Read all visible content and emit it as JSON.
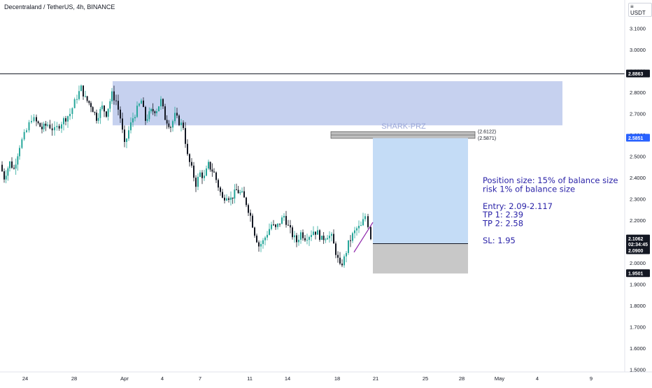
{
  "header": {
    "title": "Decentraland / TetherUS, 4h, BINANCE",
    "currency": "USDT",
    "currency_prefix": "≡"
  },
  "colors": {
    "candle_up": "#26a69a",
    "candle_dark": "#131722",
    "zone": "#b3c2ea",
    "profit": "#c4dcf6",
    "loss": "#c8c8c8",
    "prz_box": "#bfbfbf",
    "text_note": "#2b23a8",
    "price_tag": "#131722",
    "price_tag_blue": "#2962ff",
    "trendline": "#8e24aa"
  },
  "annotations": {
    "zone_label": "SHARK-PRZ",
    "prz_upper": "(2.6122)",
    "prz_lower": "(2.5871)",
    "note_lines": [
      "Position size: 15% of balance size",
      "risk 1% of balance size",
      "",
      "Entry: 2.09-2.117",
      "TP 1: 2.39",
      "TP 2: 2.58",
      "",
      "SL: 1.95"
    ]
  },
  "price_tags": {
    "horizontal_line": "2.8863",
    "target": "2.5851",
    "current": "2.1062",
    "countdown": "02:34:45",
    "entry": "2.0900",
    "stop": "1.9501"
  },
  "chart_data": {
    "type": "candlestick",
    "title": "Decentraland / TetherUS, 4h, BINANCE",
    "y_axis": {
      "min": 1.5,
      "max": 3.15,
      "ticks": [
        "3.1000",
        "3.0000",
        "2.9000",
        "2.8000",
        "2.7000",
        "2.6000",
        "2.5000",
        "2.4000",
        "2.3000",
        "2.2000",
        "2.1000",
        "2.0000",
        "1.9000",
        "1.8000",
        "1.7000",
        "1.6000",
        "1.5000"
      ]
    },
    "x_axis": {
      "labels": [
        "24",
        "28",
        "Apr",
        "4",
        "7",
        "11",
        "14",
        "18",
        "21",
        "25",
        "28",
        "May",
        "4",
        "9"
      ]
    },
    "close_path": [
      [
        0,
        2.46
      ],
      [
        6,
        2.4
      ],
      [
        14,
        2.47
      ],
      [
        20,
        2.44
      ],
      [
        28,
        2.55
      ],
      [
        38,
        2.62
      ],
      [
        45,
        2.68
      ],
      [
        52,
        2.66
      ],
      [
        60,
        2.63
      ],
      [
        68,
        2.65
      ],
      [
        78,
        2.62
      ],
      [
        88,
        2.66
      ],
      [
        100,
        2.7
      ],
      [
        110,
        2.78
      ],
      [
        116,
        2.82
      ],
      [
        122,
        2.77
      ],
      [
        130,
        2.74
      ],
      [
        138,
        2.68
      ],
      [
        146,
        2.73
      ],
      [
        152,
        2.7
      ],
      [
        160,
        2.79
      ],
      [
        166,
        2.76
      ],
      [
        172,
        2.68
      ],
      [
        178,
        2.55
      ],
      [
        184,
        2.62
      ],
      [
        190,
        2.68
      ],
      [
        196,
        2.72
      ],
      [
        202,
        2.76
      ],
      [
        208,
        2.67
      ],
      [
        216,
        2.71
      ],
      [
        224,
        2.72
      ],
      [
        230,
        2.76
      ],
      [
        236,
        2.68
      ],
      [
        244,
        2.64
      ],
      [
        250,
        2.69
      ],
      [
        256,
        2.66
      ],
      [
        262,
        2.64
      ],
      [
        268,
        2.5
      ],
      [
        274,
        2.44
      ],
      [
        280,
        2.37
      ],
      [
        286,
        2.42
      ],
      [
        292,
        2.4
      ],
      [
        298,
        2.46
      ],
      [
        306,
        2.42
      ],
      [
        312,
        2.36
      ],
      [
        318,
        2.3
      ],
      [
        324,
        2.32
      ],
      [
        330,
        2.3
      ],
      [
        338,
        2.34
      ],
      [
        346,
        2.32
      ],
      [
        352,
        2.28
      ],
      [
        358,
        2.22
      ],
      [
        364,
        2.14
      ],
      [
        370,
        2.08
      ],
      [
        376,
        2.1
      ],
      [
        382,
        2.14
      ],
      [
        388,
        2.18
      ],
      [
        394,
        2.16
      ],
      [
        400,
        2.19
      ],
      [
        406,
        2.22
      ],
      [
        412,
        2.17
      ],
      [
        418,
        2.13
      ],
      [
        424,
        2.1
      ],
      [
        430,
        2.14
      ],
      [
        436,
        2.12
      ],
      [
        442,
        2.13
      ],
      [
        448,
        2.15
      ],
      [
        454,
        2.14
      ],
      [
        460,
        2.11
      ],
      [
        468,
        2.13
      ],
      [
        474,
        2.12
      ],
      [
        480,
        2.05
      ],
      [
        486,
        1.98
      ],
      [
        492,
        2.02
      ],
      [
        498,
        2.09
      ],
      [
        504,
        2.13
      ],
      [
        510,
        2.16
      ],
      [
        516,
        2.17
      ],
      [
        522,
        2.22
      ],
      [
        526,
        2.18
      ],
      [
        530,
        2.12
      ]
    ],
    "zone": {
      "top": 2.852,
      "bottom": 2.645
    },
    "prz": {
      "upper": 2.6122,
      "lower": 2.5871
    },
    "position": {
      "entry": 2.09,
      "target": 2.5851,
      "stop": 1.9501
    },
    "horizontal_line": 2.8863
  }
}
